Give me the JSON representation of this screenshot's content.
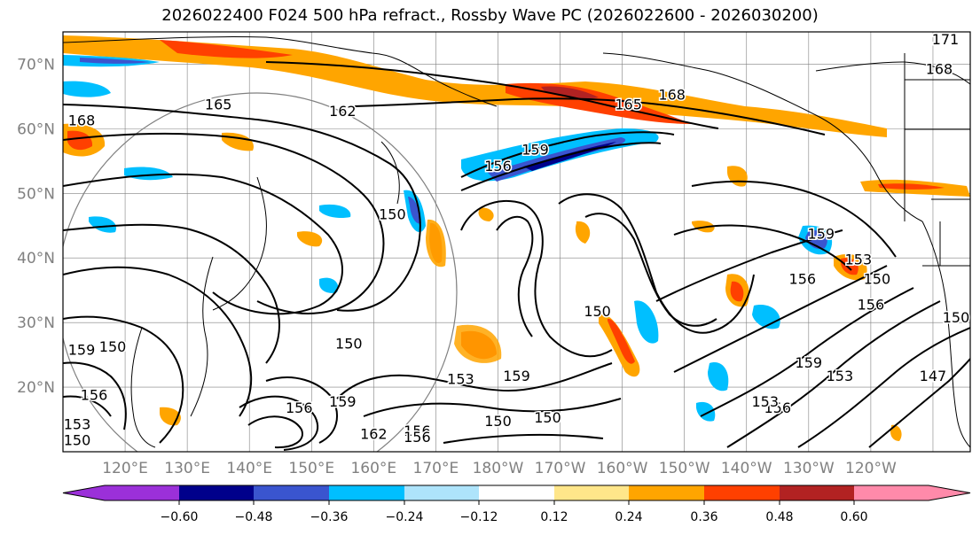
{
  "title": "2026022400 F024 500 hPa refract., Rossby Wave PC (2026022600 - 2026030200)",
  "colors": {
    "below": "#9b30d9",
    "b1": "#00008b",
    "b2": "#3a55cf",
    "b3": "#00bfff",
    "b4": "#aee4fb",
    "b5": "#ffffff",
    "b6": "#ffe68a",
    "b7": "#ffa500",
    "b8": "#ff4000",
    "b9": "#b22222",
    "above": "#ff8aaa",
    "contour": "#000000",
    "grid": "#808080"
  },
  "map": {
    "lat_labels": [
      "70°N",
      "60°N",
      "50°N",
      "40°N",
      "30°N",
      "20°N"
    ],
    "lon_labels": [
      "120°E",
      "130°E",
      "140°E",
      "150°E",
      "160°E",
      "170°E",
      "180°W",
      "170°W",
      "160°W",
      "150°W",
      "140°W",
      "130°W",
      "120°W"
    ],
    "contour_labels": [
      {
        "text": "168",
        "lon": 113,
        "lat": 60.5
      },
      {
        "text": "165",
        "lon": 135,
        "lat": 63
      },
      {
        "text": "162",
        "lon": 155,
        "lat": 62
      },
      {
        "text": "171",
        "lon": 252,
        "lat": 73.5
      },
      {
        "text": "168",
        "lon": 251,
        "lat": 68.5
      },
      {
        "text": "168",
        "lon": 208,
        "lat": 64.5
      },
      {
        "text": "165",
        "lon": 201,
        "lat": 63
      },
      {
        "text": "159",
        "lon": 186,
        "lat": 56
      },
      {
        "text": "156",
        "lon": 180,
        "lat": 53.5
      },
      {
        "text": "150",
        "lon": 163,
        "lat": 46
      },
      {
        "text": "150",
        "lon": 156,
        "lat": 26
      },
      {
        "text": "153",
        "lon": 174,
        "lat": 20.5
      },
      {
        "text": "159",
        "lon": 183,
        "lat": 21
      },
      {
        "text": "150",
        "lon": 196,
        "lat": 31
      },
      {
        "text": "150",
        "lon": 180,
        "lat": 14
      },
      {
        "text": "150",
        "lon": 188,
        "lat": 14.5
      },
      {
        "text": "159",
        "lon": 113,
        "lat": 25
      },
      {
        "text": "150",
        "lon": 118,
        "lat": 25.5
      },
      {
        "text": "156",
        "lon": 115,
        "lat": 18
      },
      {
        "text": "153",
        "lon": 112,
        "lat": 13.5
      },
      {
        "text": "150",
        "lon": 110,
        "lat": 11
      },
      {
        "text": "159",
        "lon": 155,
        "lat": 17
      },
      {
        "text": "156",
        "lon": 148,
        "lat": 16
      },
      {
        "text": "162",
        "lon": 160,
        "lat": 12
      },
      {
        "text": "156",
        "lon": 167,
        "lat": 12.5
      },
      {
        "text": "156",
        "lon": 167,
        "lat": 11.5
      },
      {
        "text": "156",
        "lon": 240,
        "lat": 32
      },
      {
        "text": "153",
        "lon": 238,
        "lat": 39
      },
      {
        "text": "156",
        "lon": 229,
        "lat": 36
      },
      {
        "text": "159",
        "lon": 232,
        "lat": 43
      },
      {
        "text": "159",
        "lon": 230,
        "lat": 23
      },
      {
        "text": "156",
        "lon": 225,
        "lat": 16
      },
      {
        "text": "153",
        "lon": 223,
        "lat": 17
      },
      {
        "text": "153",
        "lon": 235,
        "lat": 21
      },
      {
        "text": "150",
        "lon": 241,
        "lat": 36
      },
      {
        "text": "150",
        "lon": 254,
        "lat": 30
      },
      {
        "text": "147",
        "lon": 250,
        "lat": 21
      }
    ]
  },
  "colorbar": {
    "ticks": [
      "−0.60",
      "−0.48",
      "−0.36",
      "−0.24",
      "−0.12",
      "0.12",
      "0.24",
      "0.36",
      "0.48",
      "0.60"
    ]
  }
}
